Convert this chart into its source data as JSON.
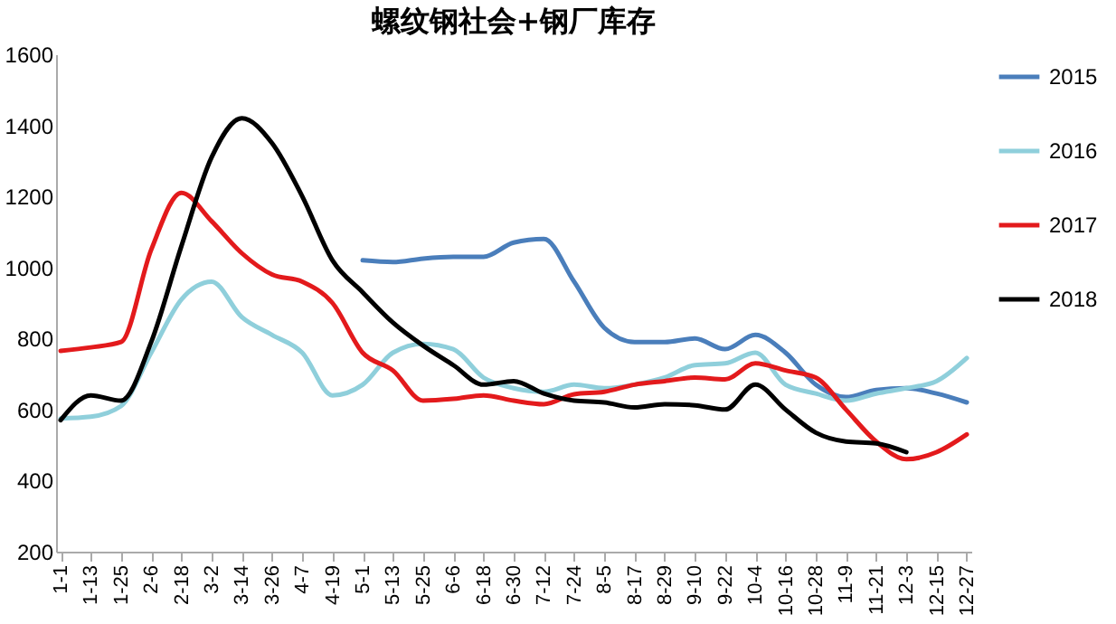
{
  "chart_data": {
    "type": "line",
    "title": "螺纹钢社会+钢厂库存",
    "categories": [
      "1-1",
      "1-13",
      "1-25",
      "2-6",
      "2-18",
      "3-2",
      "3-14",
      "3-26",
      "4-7",
      "4-19",
      "5-1",
      "5-13",
      "5-25",
      "6-6",
      "6-18",
      "6-30",
      "7-12",
      "7-24",
      "8-5",
      "8-17",
      "8-29",
      "9-10",
      "9-22",
      "10-4",
      "10-16",
      "10-28",
      "11-9",
      "11-21",
      "12-3",
      "12-15",
      "12-27"
    ],
    "series": [
      {
        "name": "2015",
        "color": "#4a7ebb",
        "values": [
          null,
          null,
          null,
          null,
          null,
          null,
          null,
          null,
          null,
          null,
          1020,
          1015,
          1025,
          1030,
          1030,
          1070,
          1080,
          960,
          830,
          790,
          790,
          800,
          770,
          810,
          760,
          670,
          635,
          655,
          660,
          645,
          620
        ]
      },
      {
        "name": "2016",
        "color": "#8fcfdb",
        "values": [
          575,
          580,
          610,
          760,
          910,
          960,
          860,
          810,
          760,
          640,
          670,
          760,
          785,
          770,
          690,
          660,
          650,
          670,
          660,
          670,
          690,
          725,
          730,
          760,
          670,
          645,
          625,
          645,
          660,
          680,
          745
        ]
      },
      {
        "name": "2017",
        "color": "#e31a1c",
        "values": [
          765,
          775,
          790,
          1050,
          1210,
          1130,
          1040,
          980,
          960,
          900,
          760,
          710,
          625,
          630,
          640,
          625,
          615,
          643,
          650,
          670,
          680,
          690,
          685,
          730,
          710,
          690,
          600,
          510,
          460,
          480,
          530
        ]
      },
      {
        "name": "2018",
        "color": "#000000",
        "values": [
          570,
          640,
          625,
          790,
          1060,
          1310,
          1420,
          1350,
          1200,
          1020,
          930,
          845,
          780,
          725,
          670,
          680,
          645,
          625,
          620,
          606,
          615,
          612,
          600,
          670,
          600,
          535,
          510,
          505,
          480,
          null,
          null
        ]
      }
    ],
    "ylim": [
      200,
      1600
    ],
    "yticks": [
      200,
      400,
      600,
      800,
      1000,
      1200,
      1400,
      1600
    ],
    "legend": "right"
  }
}
